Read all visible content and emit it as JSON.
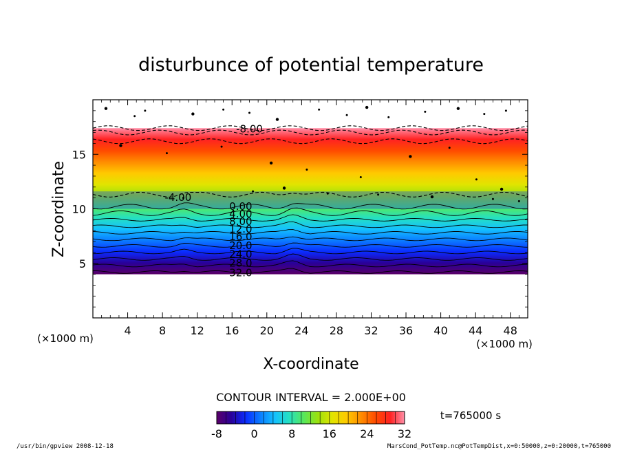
{
  "figure": {
    "title": "disturbunce of potential temperature",
    "contour_interval": "CONTOUR INTERVAL = 2.000E+00",
    "time_label": "t=765000 s",
    "footer_left": "/usr/bin/gpview   2008-12-18",
    "footer_right": "MarsCond_PotTemp.nc@PotTempDist,x=0:50000,z=0:20000,t=765000"
  },
  "chart_data": {
    "type": "heatmap",
    "title": "disturbunce of potential temperature",
    "xlabel": "X-coordinate",
    "ylabel": "Z-coordinate",
    "x_unit": "(×1000 m)",
    "z_unit": "(×1000 m)",
    "xlim": [
      0,
      50
    ],
    "ylim": [
      0,
      20
    ],
    "x_ticks": [
      4,
      8,
      12,
      16,
      20,
      24,
      28,
      32,
      36,
      40,
      44,
      48
    ],
    "y_ticks": [
      5,
      10,
      15
    ],
    "contour_interval": 2.0,
    "colorbar": {
      "min": -8,
      "max": 32,
      "ticks": [
        -8,
        0,
        8,
        16,
        24,
        32
      ]
    },
    "contour_labels": [
      {
        "label": "-8.00",
        "x": 18.0,
        "z": 17.3
      },
      {
        "label": "-4.00",
        "x": 9.8,
        "z": 11.0
      },
      {
        "label": "0.00",
        "x": 17.0,
        "z": 10.2
      },
      {
        "label": "4.00",
        "x": 17.0,
        "z": 9.5
      },
      {
        "label": "8.00",
        "x": 17.0,
        "z": 8.8
      },
      {
        "label": "12.0",
        "x": 17.0,
        "z": 8.1
      },
      {
        "label": "16.0",
        "x": 17.0,
        "z": 7.4
      },
      {
        "label": "20.0",
        "x": 17.0,
        "z": 6.6
      },
      {
        "label": "24.0",
        "x": 17.0,
        "z": 5.8
      },
      {
        "label": "28.0",
        "x": 17.0,
        "z": 5.0
      },
      {
        "label": "32.0",
        "x": 17.0,
        "z": 4.1
      }
    ],
    "colormap": [
      "#5a0068",
      "#2a0098",
      "#0a2cff",
      "#0b7cff",
      "#14c0ff",
      "#25e0c2",
      "#56e85d",
      "#9ce10d",
      "#e2e400",
      "#ffc900",
      "#ff8c00",
      "#ff4a00",
      "#ff2222",
      "#ff8fa8"
    ],
    "grid": false
  }
}
